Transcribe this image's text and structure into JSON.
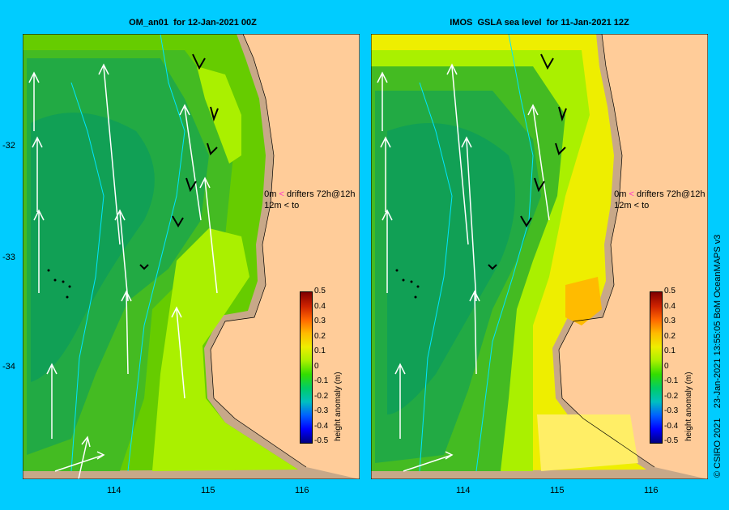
{
  "panels": [
    {
      "title": "OM_an01  for 12-Jan-2021 00Z"
    },
    {
      "title": "IMOS  GSLA sea level  for 11-Jan-2021 12Z"
    }
  ],
  "axes": {
    "x_ticks": [
      "114",
      "115",
      "116"
    ],
    "y_ticks": [
      "-32",
      "-33",
      "-34"
    ]
  },
  "legend": {
    "row1_depth": "0m",
    "row1_text": "drifters 72h@12h",
    "row2_depth": "12m",
    "row2_text": "to",
    "row1_color": "#ff33cc",
    "row2_color": "#000000"
  },
  "colorbar": {
    "label": "height anomaly (m)",
    "ticks": [
      "0.5",
      "0.4",
      "0.3",
      "0.2",
      "0.1",
      "0",
      "-0.1",
      "-0.2",
      "-0.3",
      "-0.4",
      "-0.5"
    ],
    "colors": [
      "#000080",
      "#0000ff",
      "#0060ff",
      "#00c0c0",
      "#00cc66",
      "#33dd00",
      "#aaf000",
      "#eeee00",
      "#ffbb00",
      "#ff6600",
      "#cc2200",
      "#800000"
    ]
  },
  "credit": "© CSIRO 2021    23-Jan-2021 13:55:05 BoM OceanMAPS v3",
  "colors": {
    "land": "#ffcc99",
    "shelf": "#c8a888",
    "frame": "#00ccff"
  }
}
